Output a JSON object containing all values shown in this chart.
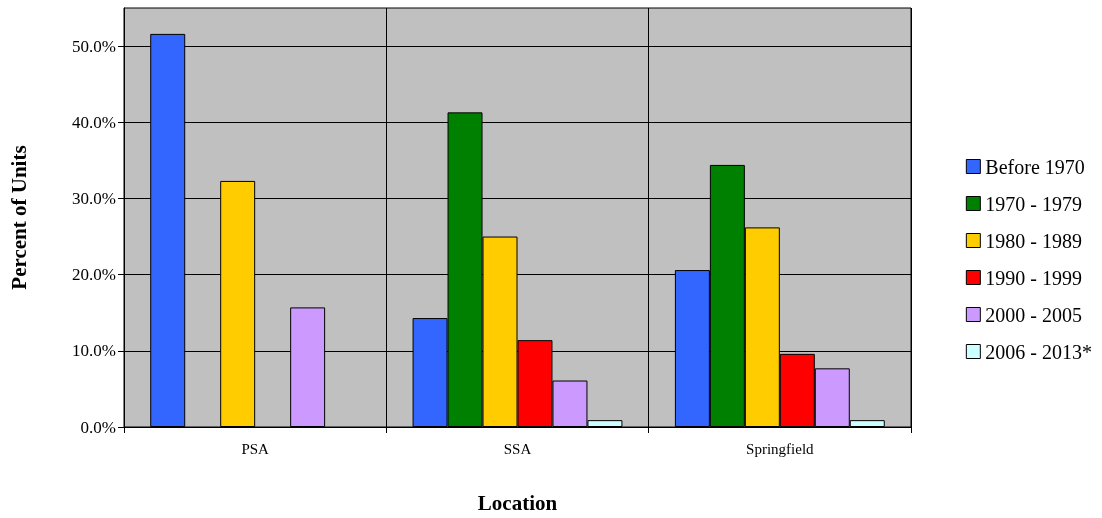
{
  "chart_data": {
    "type": "bar",
    "xlabel": "Location",
    "ylabel": "Percent of Units",
    "categories": [
      "PSA",
      "SSA",
      "Springfield"
    ],
    "series": [
      {
        "name": "Before 1970",
        "color": "#3366ff",
        "values": [
          51.6,
          14.3,
          20.6
        ]
      },
      {
        "name": "1970 - 1979",
        "color": "#008000",
        "values": [
          null,
          41.3,
          34.4
        ]
      },
      {
        "name": "1980 - 1989",
        "color": "#ffcc00",
        "values": [
          32.3,
          25.0,
          26.2
        ]
      },
      {
        "name": "1990 - 1999",
        "color": "#ff0000",
        "values": [
          null,
          11.4,
          9.6
        ]
      },
      {
        "name": "2000 - 2005",
        "color": "#cc99ff",
        "values": [
          15.7,
          6.1,
          7.7
        ]
      },
      {
        "name": "2006 - 2013*",
        "color": "#ccffff",
        "values": [
          null,
          0.9,
          0.9
        ]
      }
    ],
    "ylim": [
      0,
      55
    ],
    "yticks": [
      {
        "value": 0,
        "label": "0.0%"
      },
      {
        "value": 10,
        "label": "10.0%"
      },
      {
        "value": 20,
        "label": "20.0%"
      },
      {
        "value": 30,
        "label": "30.0%"
      },
      {
        "value": 40,
        "label": "40.0%"
      },
      {
        "value": 50,
        "label": "50.0%"
      }
    ],
    "grid": true,
    "legend": "right"
  }
}
